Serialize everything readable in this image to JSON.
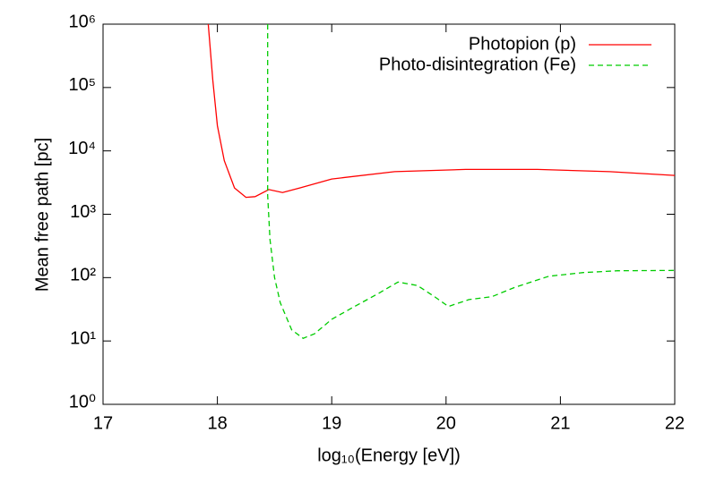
{
  "chart_data": {
    "type": "line",
    "x_label": "log₁₀(Energy [eV])",
    "y_label": "Mean free path [pc]",
    "xlim": [
      17,
      22
    ],
    "xticks": [
      17,
      18,
      19,
      20,
      21,
      22
    ],
    "ylim": [
      1,
      1000000
    ],
    "log_y": true,
    "yticks": [
      {
        "value": 1,
        "label": "10⁰"
      },
      {
        "value": 10,
        "label": "10¹"
      },
      {
        "value": 100,
        "label": "10²"
      },
      {
        "value": 1000,
        "label": "10³"
      },
      {
        "value": 10000,
        "label": "10⁴"
      },
      {
        "value": 100000,
        "label": "10⁵"
      },
      {
        "value": 1000000,
        "label": "10⁶"
      }
    ],
    "legend": "upper-right",
    "series": [
      {
        "name": "Photopion (p)",
        "color": "#ff0000",
        "dashed": false,
        "x": [
          17.92,
          17.96,
          18.0,
          18.06,
          18.15,
          18.25,
          18.33,
          18.45,
          18.57,
          18.72,
          19.0,
          19.55,
          20.17,
          20.8,
          21.43,
          22.0
        ],
        "values": [
          1000000,
          130000,
          25000,
          7000,
          2600,
          1850,
          1900,
          2450,
          2200,
          2600,
          3600,
          4700,
          5100,
          5100,
          4700,
          4100
        ]
      },
      {
        "name": "Photo-disintegration (Fe)",
        "color": "#00cc00",
        "dashed": true,
        "x": [
          18.44,
          18.44,
          18.46,
          18.5,
          18.55,
          18.65,
          18.75,
          18.85,
          19.0,
          19.2,
          19.4,
          19.58,
          19.75,
          19.9,
          20.02,
          20.2,
          20.4,
          20.6,
          20.9,
          21.2,
          21.5,
          22.0
        ],
        "values": [
          1000000,
          2000,
          400,
          100,
          40,
          15,
          11,
          13,
          22,
          35,
          55,
          85,
          75,
          50,
          35,
          45,
          50,
          70,
          105,
          120,
          128,
          130
        ]
      }
    ]
  }
}
